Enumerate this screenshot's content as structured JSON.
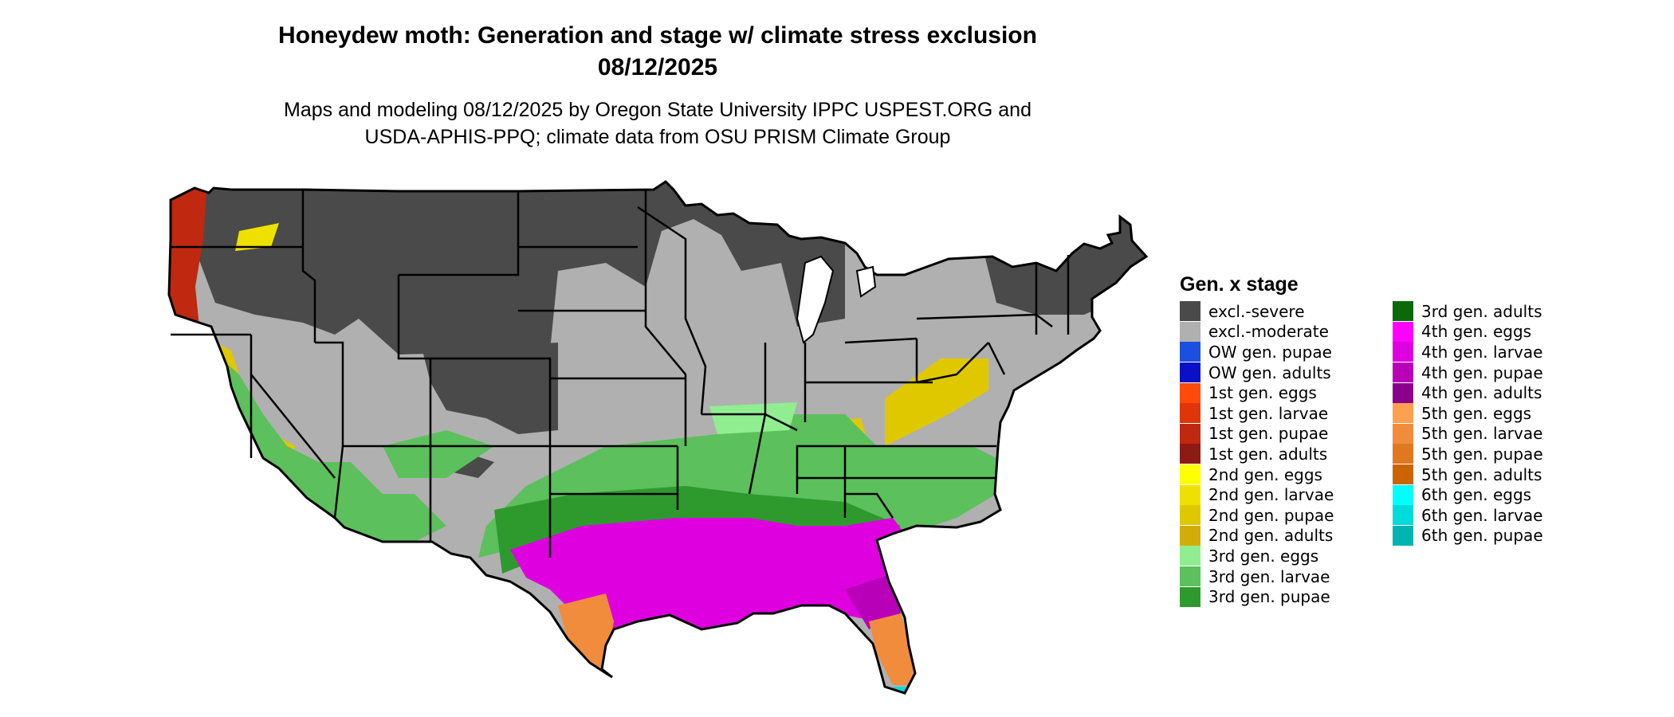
{
  "title": {
    "line1": "Honeydew moth: Generation and stage w/ climate stress exclusion",
    "line2": "08/12/2025"
  },
  "subtitle": {
    "line1": "Maps and modeling 08/12/2025 by Oregon State University IPPC USPEST.ORG and",
    "line2": "USDA-APHIS-PPQ; climate data from OSU PRISM Climate Group"
  },
  "legend": {
    "title": "Gen. x stage",
    "items": [
      {
        "label": "excl.-severe",
        "color": "#4a4a4a"
      },
      {
        "label": "excl.-moderate",
        "color": "#b0b0b0"
      },
      {
        "label": "OW gen. pupae",
        "color": "#1a4fe0"
      },
      {
        "label": "OW gen. adults",
        "color": "#0a10c8"
      },
      {
        "label": "1st gen. eggs",
        "color": "#ff4a0a"
      },
      {
        "label": "1st gen. larvae",
        "color": "#e0350a"
      },
      {
        "label": "1st gen. pupae",
        "color": "#c02810"
      },
      {
        "label": "1st gen. adults",
        "color": "#8e1a14"
      },
      {
        "label": "2nd gen. eggs",
        "color": "#ffff00"
      },
      {
        "label": "2nd gen. larvae",
        "color": "#f0e000"
      },
      {
        "label": "2nd gen. pupae",
        "color": "#e0c800"
      },
      {
        "label": "2nd gen. adults",
        "color": "#d4ac0a"
      },
      {
        "label": "3rd gen. eggs",
        "color": "#90ee90"
      },
      {
        "label": "3rd gen. larvae",
        "color": "#5cc05c"
      },
      {
        "label": "3rd gen. pupae",
        "color": "#2e9a2e"
      },
      {
        "label": "3rd gen. adults",
        "color": "#0a6a0a"
      },
      {
        "label": "4th gen. eggs",
        "color": "#ff00ff"
      },
      {
        "label": "4th gen. larvae",
        "color": "#de00de"
      },
      {
        "label": "4th gen. pupae",
        "color": "#b800b8"
      },
      {
        "label": "4th gen. adults",
        "color": "#8a008a"
      },
      {
        "label": "5th gen. eggs",
        "color": "#ffa050"
      },
      {
        "label": "5th gen. larvae",
        "color": "#f08c3c"
      },
      {
        "label": "5th gen. pupae",
        "color": "#e07820"
      },
      {
        "label": "5th gen. adults",
        "color": "#cc6400"
      },
      {
        "label": "6th gen. eggs",
        "color": "#00ffff"
      },
      {
        "label": "6th gen. larvae",
        "color": "#00dcdc"
      },
      {
        "label": "6th gen. pupae",
        "color": "#00b4b4"
      }
    ]
  }
}
